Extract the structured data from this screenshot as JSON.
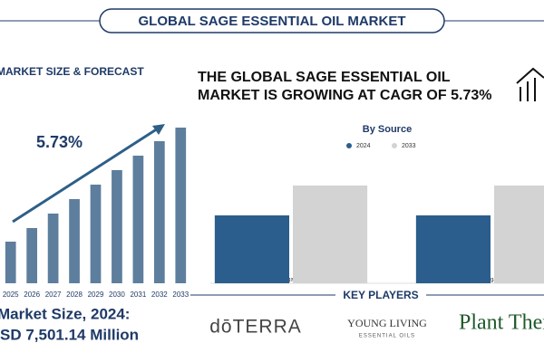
{
  "header": {
    "title": "GLOBAL SAGE ESSENTIAL OIL MARKET"
  },
  "forecast": {
    "heading": "MARKET SIZE & FORECAST",
    "cagr": "5.73%"
  },
  "market_size": {
    "label": "Market Size, 2024:",
    "value": "SD 7,501.14 Million"
  },
  "headline": [
    "THE GLOBAL SAGE ESSENTIAL OIL",
    "MARKET IS GROWING AT CAGR OF 5.73%"
  ],
  "chart_data": [
    {
      "type": "bar",
      "categories": [
        "2025",
        "2026",
        "2027",
        "2028",
        "2029",
        "2030",
        "2031",
        "2032",
        "2033"
      ],
      "values": [
        46,
        61,
        77,
        93,
        109,
        125,
        141,
        157,
        172
      ],
      "color": "#5e7e9d",
      "ylim": [
        0,
        180
      ]
    },
    {
      "type": "bar",
      "title": "By Source",
      "categories": [
        "Organic",
        "Inorganic"
      ],
      "series": [
        {
          "name": "2024",
          "color": "#2b5e8c",
          "values": [
            75,
            75
          ]
        },
        {
          "name": "2033",
          "color": "#d3d3d3",
          "values": [
            108,
            108
          ]
        }
      ],
      "ylim": [
        0,
        140
      ]
    }
  ],
  "key_players": {
    "title": "KEY PLAYERS",
    "logos": [
      "dōTERRA",
      "YOUNG LIVING",
      "ESSENTIAL OILS",
      "Plant Thera"
    ]
  }
}
